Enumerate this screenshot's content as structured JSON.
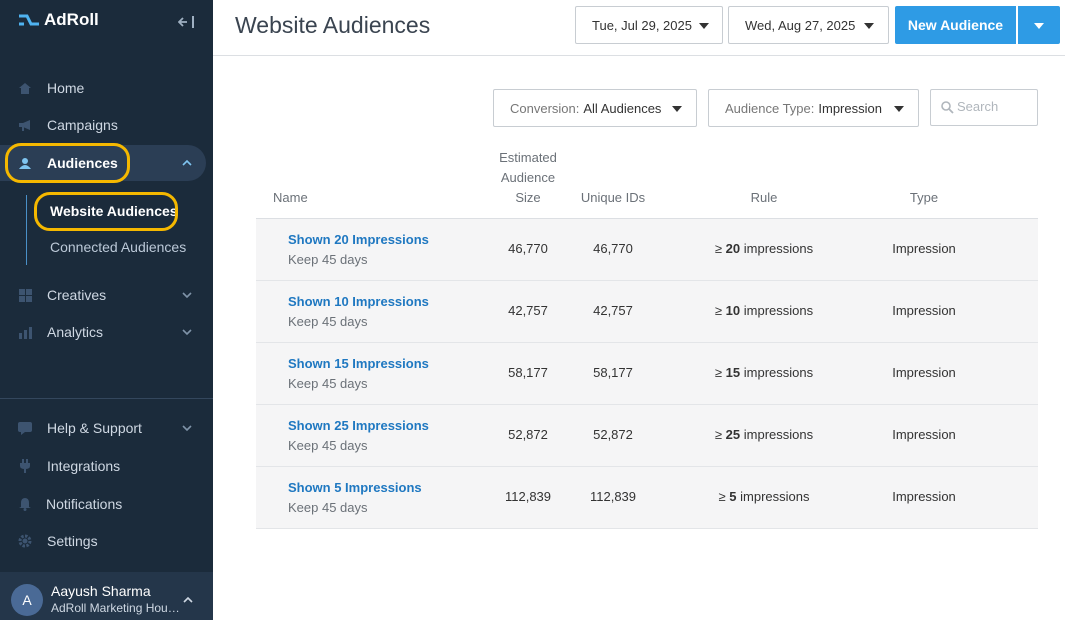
{
  "brand": {
    "name": "AdRoll"
  },
  "sidebar": {
    "items": [
      {
        "key": "home",
        "label": "Home"
      },
      {
        "key": "campaigns",
        "label": "Campaigns"
      },
      {
        "key": "audiences",
        "label": "Audiences"
      },
      {
        "key": "creatives",
        "label": "Creatives"
      },
      {
        "key": "analytics",
        "label": "Analytics"
      },
      {
        "key": "help",
        "label": "Help & Support"
      },
      {
        "key": "integrations",
        "label": "Integrations"
      },
      {
        "key": "notifications",
        "label": "Notifications"
      },
      {
        "key": "settings",
        "label": "Settings"
      }
    ],
    "sub_items": [
      {
        "label": "Website Audiences"
      },
      {
        "label": "Connected Audiences"
      }
    ],
    "user": {
      "initial": "A",
      "name": "Aayush Sharma",
      "org": "AdRoll Marketing House..."
    }
  },
  "header": {
    "title": "Website Audiences",
    "start_date": "Tue, Jul 29, 2025",
    "end_date": "Wed, Aug 27, 2025",
    "new_button": "New Audience"
  },
  "filters": {
    "conversion_label": "Conversion:",
    "conversion_value": "All Audiences",
    "type_label": "Audience Type:",
    "type_value": "Impression",
    "search_placeholder": "Search"
  },
  "table": {
    "headers": {
      "name": "Name",
      "size_1": "Estimated",
      "size_2": "Audience",
      "size_3": "Size",
      "unique": "Unique IDs",
      "rule": "Rule",
      "type": "Type"
    },
    "rows": [
      {
        "name": "Shown 20 Impressions",
        "keep": "Keep 45 days",
        "size": "46,770",
        "unique": "46,770",
        "rule_prefix": "≥",
        "rule_num": "20",
        "rule_suffix": "impressions",
        "type": "Impression"
      },
      {
        "name": "Shown 10 Impressions",
        "keep": "Keep 45 days",
        "size": "42,757",
        "unique": "42,757",
        "rule_prefix": "≥",
        "rule_num": "10",
        "rule_suffix": "impressions",
        "type": "Impression"
      },
      {
        "name": "Shown 15 Impressions",
        "keep": "Keep 45 days",
        "size": "58,177",
        "unique": "58,177",
        "rule_prefix": "≥",
        "rule_num": "15",
        "rule_suffix": "impressions",
        "type": "Impression"
      },
      {
        "name": "Shown 25 Impressions",
        "keep": "Keep 45 days",
        "size": "52,872",
        "unique": "52,872",
        "rule_prefix": "≥",
        "rule_num": "25",
        "rule_suffix": "impressions",
        "type": "Impression"
      },
      {
        "name": "Shown 5 Impressions",
        "keep": "Keep 45 days",
        "size": "112,839",
        "unique": "112,839",
        "rule_prefix": "≥",
        "rule_num": "5",
        "rule_suffix": "impressions",
        "type": "Impression"
      }
    ]
  },
  "colors": {
    "sidebar_bg": "#1b2b3b",
    "accent": "#2e9be5",
    "highlight": "#f5b800",
    "link": "#1f78c1"
  }
}
